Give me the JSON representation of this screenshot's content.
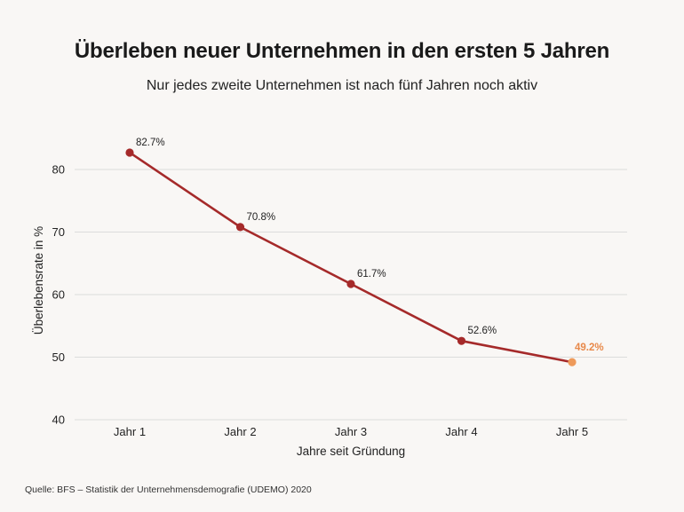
{
  "title": "Überleben neuer Unternehmen in den ersten 5 Jahren",
  "subtitle": "Nur jedes zweite Unternehmen ist nach fünf Jahren noch aktiv",
  "source": "Quelle: BFS – Statistik der Unternehmensdemografie (UDEMO) 2020",
  "colors": {
    "line": "#a52a2a",
    "highlight": "#ee9a5a",
    "grid": "#dcdcdc",
    "background": "#f9f7f5"
  },
  "chart_data": {
    "type": "line",
    "title": "Überleben neuer Unternehmen in den ersten 5 Jahren",
    "subtitle": "Nur jedes zweite Unternehmen ist nach fünf Jahren noch aktiv",
    "xlabel": "Jahre seit Gründung",
    "ylabel": "Überlebensrate in %",
    "categories": [
      "Jahr 1",
      "Jahr 2",
      "Jahr 3",
      "Jahr 4",
      "Jahr 5"
    ],
    "values": [
      82.7,
      70.8,
      61.7,
      52.6,
      49.2
    ],
    "data_labels": [
      "82.7%",
      "70.8%",
      "61.7%",
      "52.6%",
      "49.2%"
    ],
    "highlight_index": 4,
    "ylim": [
      40,
      85
    ],
    "yticks": [
      40,
      50,
      60,
      70,
      80
    ],
    "grid": true
  }
}
